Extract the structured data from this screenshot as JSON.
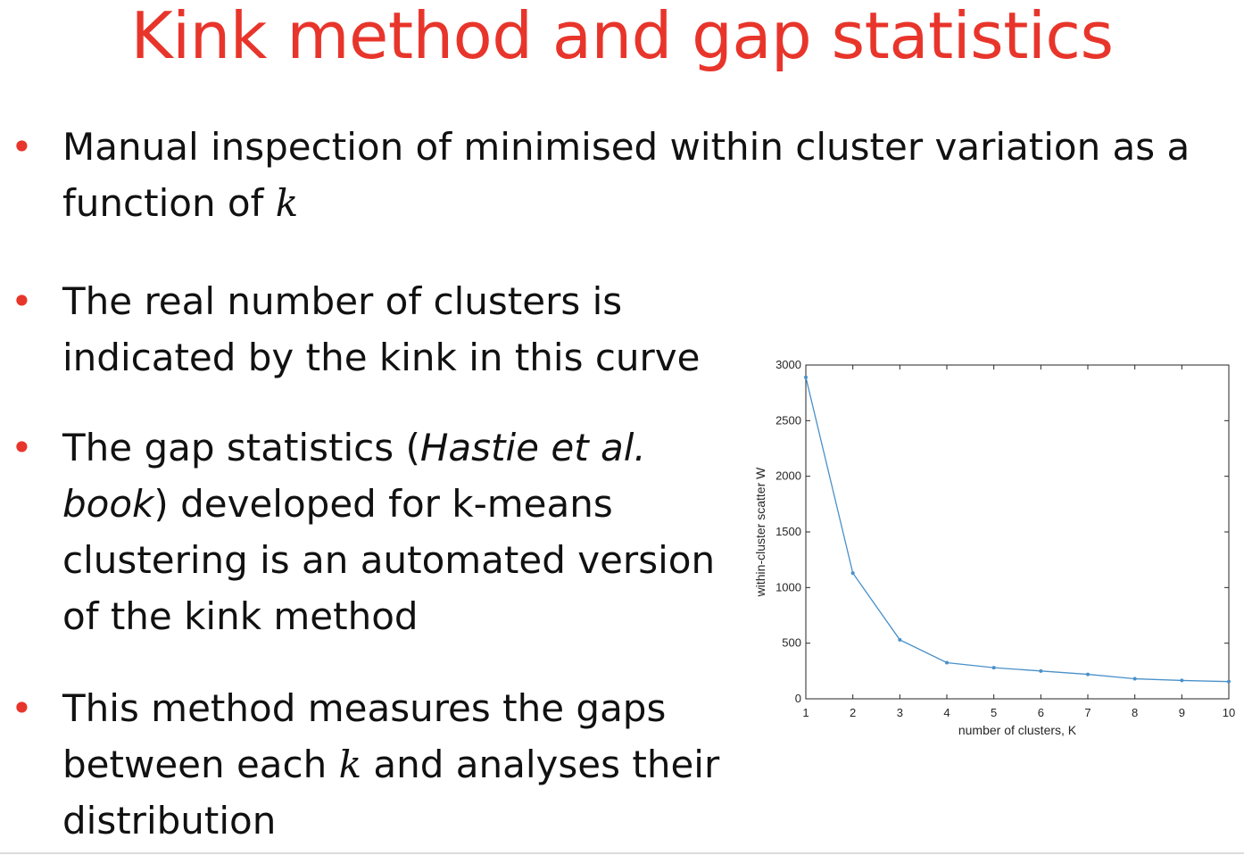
{
  "title": "Kink method and gap statistics",
  "colors": {
    "title": "#e8352b",
    "bullet": "#e8352b",
    "series": "#4a90c9"
  },
  "bullets": [
    {
      "marker": "•",
      "line1": "Manual inspection of minimised within cluster variation as a",
      "line2_pre": "function of ",
      "line2_math": "k"
    },
    {
      "marker": "•",
      "line1": "The real number of clusters is",
      "line2": "indicated by the kink in this curve"
    },
    {
      "marker": "•",
      "line1_pre": "The gap statistics (",
      "line1_ital": "Hastie et al.",
      "line2_ital": "book",
      "line2_post": ") developed for k-means",
      "line3": "clustering is an automated version",
      "line4": "of the kink method"
    },
    {
      "marker": "•",
      "line1": "This method measures the gaps",
      "line2_pre": "between each ",
      "line2_math": "k",
      "line2_post": " and analyses their",
      "line3": "distribution"
    }
  ],
  "chart_data": {
    "type": "line",
    "xlabel": "number of clusters, K",
    "ylabel": "within-cluster scatter W",
    "x": [
      1,
      2,
      3,
      4,
      5,
      6,
      7,
      8,
      9,
      10
    ],
    "series": [
      {
        "values": [
          2890,
          1130,
          530,
          325,
          280,
          250,
          220,
          180,
          165,
          155
        ]
      }
    ],
    "xlim": [
      1,
      10
    ],
    "ylim": [
      0,
      3000
    ],
    "xticks": [
      1,
      2,
      3,
      4,
      5,
      6,
      7,
      8,
      9,
      10
    ],
    "yticks": [
      0,
      500,
      1000,
      1500,
      2000,
      2500,
      3000
    ],
    "grid": false
  }
}
